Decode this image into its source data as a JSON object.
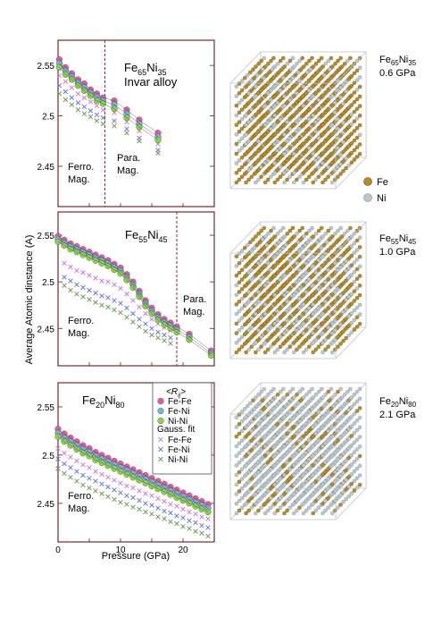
{
  "figure": {
    "ylabel": "Average Atomic dinstance (A)",
    "xlabel": "Pressure (GPa)",
    "legend_species": [
      {
        "label": "Fe",
        "color": "#b58a2a"
      },
      {
        "label": "Ni",
        "color": "#b9c6cc"
      }
    ]
  },
  "chart_data": [
    {
      "type": "scatter",
      "composition": "Fe65Ni35",
      "title_main": "Fe",
      "title_sub1": "65",
      "title_mid": "Ni",
      "title_sub2": "35",
      "annotation": "Invar alloy",
      "region_left": [
        "Ferro.",
        "Mag."
      ],
      "region_right": [
        "Para.",
        "Mag."
      ],
      "transition_pressure": 7.5,
      "xlim": [
        0,
        25
      ],
      "ylim": [
        2.41,
        2.575
      ],
      "yticks": [
        2.45,
        2.5,
        2.55
      ],
      "ytick_labels": [
        "2.45",
        "2.5",
        "2.55"
      ],
      "series": [
        {
          "name": "Fe-Fe",
          "marker": "circle",
          "color": "#ea5aa0",
          "x": [
            0.2,
            1.2,
            2.2,
            3.2,
            4.2,
            5.2,
            6.2,
            7.2,
            9,
            11,
            13,
            16
          ],
          "y": [
            2.556,
            2.548,
            2.542,
            2.536,
            2.532,
            2.526,
            2.522,
            2.518,
            2.515,
            2.506,
            2.496,
            2.483
          ]
        },
        {
          "name": "Fe-Ni",
          "marker": "circle",
          "color": "#6cb4ea",
          "x": [
            0.2,
            1.2,
            2.2,
            3.2,
            4.2,
            5.2,
            6.2,
            7.2,
            9,
            11,
            13,
            16
          ],
          "y": [
            2.552,
            2.545,
            2.539,
            2.533,
            2.528,
            2.523,
            2.519,
            2.515,
            2.511,
            2.502,
            2.492,
            2.479
          ]
        },
        {
          "name": "Ni-Ni",
          "marker": "circle",
          "color": "#8ad444",
          "x": [
            0.2,
            1.2,
            2.2,
            3.2,
            4.2,
            5.2,
            6.2,
            7.2,
            9,
            11,
            13,
            16
          ],
          "y": [
            2.548,
            2.541,
            2.536,
            2.53,
            2.525,
            2.52,
            2.515,
            2.512,
            2.507,
            2.498,
            2.489,
            2.476
          ]
        },
        {
          "name": "Fe-Fe fit",
          "marker": "x",
          "color": "#d27ad6",
          "x": [
            0.2,
            1.2,
            2.2,
            3.2,
            4.2,
            5.2,
            6.2,
            7.2,
            9,
            11,
            13,
            16
          ],
          "y": [
            2.54,
            2.534,
            2.528,
            2.522,
            2.518,
            2.514,
            2.51,
            2.506,
            2.503,
            2.494,
            2.485,
            2.472
          ]
        },
        {
          "name": "Fe-Ni fit",
          "marker": "x",
          "color": "#6a78e6",
          "x": [
            0.2,
            1.2,
            2.2,
            3.2,
            4.2,
            5.2,
            6.2,
            7.2,
            9,
            11,
            13,
            16
          ],
          "y": [
            2.53,
            2.524,
            2.518,
            2.513,
            2.509,
            2.505,
            2.501,
            2.498,
            2.495,
            2.487,
            2.478,
            2.466
          ]
        },
        {
          "name": "Ni-Ni fit",
          "marker": "x",
          "color": "#6e9e58",
          "x": [
            0.2,
            1.2,
            2.2,
            3.2,
            4.2,
            5.2,
            6.2,
            7.2,
            9,
            11,
            13,
            16
          ],
          "y": [
            2.522,
            2.516,
            2.511,
            2.506,
            2.502,
            2.499,
            2.495,
            2.492,
            2.49,
            2.483,
            2.475,
            2.463
          ]
        }
      ]
    },
    {
      "type": "scatter",
      "composition": "Fe55Ni45",
      "title_main": "Fe",
      "title_sub1": "55",
      "title_mid": "Ni",
      "title_sub2": "45",
      "annotation": "",
      "region_left": [
        "Ferro.",
        "Mag."
      ],
      "region_right": [
        "Para.",
        "Mag."
      ],
      "transition_pressure": 19,
      "xlim": [
        0,
        25
      ],
      "ylim": [
        2.41,
        2.575
      ],
      "yticks": [
        2.45,
        2.5,
        2.55
      ],
      "ytick_labels": [
        "2.45",
        "2.5",
        "2.55"
      ],
      "series": [
        {
          "name": "Fe-Fe",
          "marker": "circle",
          "color": "#ea5aa0",
          "x": [
            0,
            1,
            2,
            3,
            4,
            5,
            6,
            7,
            8,
            9,
            10,
            11,
            12,
            13,
            14,
            15,
            16,
            17,
            18,
            19,
            21,
            24.5
          ],
          "y": [
            2.549,
            2.545,
            2.541,
            2.538,
            2.535,
            2.532,
            2.529,
            2.526,
            2.523,
            2.519,
            2.515,
            2.508,
            2.5,
            2.49,
            2.48,
            2.472,
            2.465,
            2.46,
            2.456,
            2.452,
            2.444,
            2.426
          ]
        },
        {
          "name": "Fe-Ni",
          "marker": "circle",
          "color": "#6cb4ea",
          "x": [
            0,
            1,
            2,
            3,
            4,
            5,
            6,
            7,
            8,
            9,
            10,
            11,
            12,
            13,
            14,
            15,
            16,
            17,
            18,
            19,
            21,
            24.5
          ],
          "y": [
            2.546,
            2.542,
            2.538,
            2.535,
            2.532,
            2.529,
            2.526,
            2.523,
            2.52,
            2.516,
            2.512,
            2.505,
            2.497,
            2.487,
            2.477,
            2.469,
            2.462,
            2.457,
            2.453,
            2.449,
            2.441,
            2.423
          ]
        },
        {
          "name": "Ni-Ni",
          "marker": "circle",
          "color": "#8ad444",
          "x": [
            0,
            1,
            2,
            3,
            4,
            5,
            6,
            7,
            8,
            9,
            10,
            11,
            12,
            13,
            14,
            15,
            16,
            17,
            18,
            19,
            21,
            24.5
          ],
          "y": [
            2.543,
            2.539,
            2.535,
            2.532,
            2.529,
            2.526,
            2.523,
            2.52,
            2.517,
            2.513,
            2.509,
            2.502,
            2.494,
            2.484,
            2.474,
            2.466,
            2.459,
            2.454,
            2.45,
            2.446,
            2.438,
            2.421
          ]
        },
        {
          "name": "Fe-Fe fit",
          "marker": "x",
          "color": "#d27ad6",
          "x": [
            1,
            2,
            3,
            4,
            5,
            6,
            7,
            8,
            9,
            10,
            11,
            12,
            13,
            14,
            15,
            16,
            17,
            18
          ],
          "y": [
            2.52,
            2.516,
            2.512,
            2.51,
            2.507,
            2.504,
            2.501,
            2.5,
            2.497,
            2.493,
            2.487,
            2.48,
            2.473,
            2.466,
            2.46,
            2.455,
            2.451,
            2.448
          ]
        },
        {
          "name": "Fe-Ni fit",
          "marker": "x",
          "color": "#6a78e6",
          "x": [
            1,
            2,
            3,
            4,
            5,
            6,
            7,
            8,
            9,
            10,
            11,
            12,
            13,
            14,
            15,
            16,
            17,
            18
          ],
          "y": [
            2.505,
            2.501,
            2.497,
            2.494,
            2.491,
            2.488,
            2.485,
            2.483,
            2.48,
            2.477,
            2.472,
            2.466,
            2.46,
            2.455,
            2.45,
            2.446,
            2.443,
            2.44
          ]
        },
        {
          "name": "Ni-Ni fit",
          "marker": "x",
          "color": "#6e9e58",
          "x": [
            1,
            2,
            3,
            4,
            5,
            6,
            7,
            8,
            9,
            10,
            11,
            12,
            13,
            14,
            15,
            16,
            17,
            18
          ],
          "y": [
            2.496,
            2.491,
            2.487,
            2.484,
            2.481,
            2.478,
            2.475,
            2.473,
            2.47,
            2.467,
            2.462,
            2.457,
            2.452,
            2.447,
            2.443,
            2.44,
            2.437,
            2.434
          ]
        }
      ]
    },
    {
      "type": "scatter",
      "composition": "Fe20Ni80",
      "title_main": "Fe",
      "title_sub1": "20",
      "title_mid": "Ni",
      "title_sub2": "80",
      "annotation": "",
      "region_left": [
        "Ferro.",
        "Mag."
      ],
      "region_right": [],
      "transition_pressure": null,
      "xlim": [
        0,
        25
      ],
      "ylim": [
        2.41,
        2.575
      ],
      "yticks": [
        2.45,
        2.5,
        2.55
      ],
      "ytick_labels": [
        "2.45",
        "2.5",
        "2.55"
      ],
      "xticks": [
        0,
        10,
        20
      ],
      "xtick_labels": [
        "0",
        "10",
        "20"
      ],
      "legend": {
        "header": "<R",
        "header_sub": "ij",
        "header_end": ">",
        "items": [
          "Fe-Fe",
          "Fe-Ni",
          "Ni-Ni"
        ],
        "fit_header": "Gauss. fit",
        "fit_items": [
          "Fe-Fe",
          "Fe-Ni",
          "Ni-Ni"
        ]
      },
      "series": [
        {
          "name": "Fe-Fe",
          "marker": "circle",
          "color": "#ea5aa0",
          "x": [
            0,
            1,
            2,
            3,
            4,
            5,
            6,
            7,
            8,
            9,
            10,
            11,
            12,
            13,
            14,
            15,
            16,
            17,
            18,
            19,
            20,
            21,
            22,
            23,
            24
          ],
          "y": [
            2.527,
            2.522,
            2.518,
            2.514,
            2.51,
            2.507,
            2.503,
            2.5,
            2.497,
            2.494,
            2.491,
            2.488,
            2.485,
            2.482,
            2.479,
            2.476,
            2.473,
            2.47,
            2.467,
            2.464,
            2.461,
            2.458,
            2.455,
            2.452,
            2.449
          ]
        },
        {
          "name": "Fe-Ni",
          "marker": "circle",
          "color": "#6cb4ea",
          "x": [
            0,
            1,
            2,
            3,
            4,
            5,
            6,
            7,
            8,
            9,
            10,
            11,
            12,
            13,
            14,
            15,
            16,
            17,
            18,
            19,
            20,
            21,
            22,
            23,
            24
          ],
          "y": [
            2.523,
            2.518,
            2.514,
            2.51,
            2.506,
            2.503,
            2.499,
            2.496,
            2.493,
            2.49,
            2.487,
            2.484,
            2.481,
            2.478,
            2.475,
            2.472,
            2.469,
            2.466,
            2.463,
            2.46,
            2.457,
            2.454,
            2.451,
            2.448,
            2.445
          ]
        },
        {
          "name": "Ni-Ni",
          "marker": "circle",
          "color": "#8ad444",
          "x": [
            0,
            1,
            2,
            3,
            4,
            5,
            6,
            7,
            8,
            9,
            10,
            11,
            12,
            13,
            14,
            15,
            16,
            17,
            18,
            19,
            20,
            21,
            22,
            23,
            24
          ],
          "y": [
            2.519,
            2.514,
            2.51,
            2.506,
            2.502,
            2.499,
            2.495,
            2.492,
            2.489,
            2.486,
            2.483,
            2.48,
            2.477,
            2.474,
            2.471,
            2.468,
            2.465,
            2.462,
            2.459,
            2.456,
            2.453,
            2.45,
            2.447,
            2.444,
            2.441
          ]
        },
        {
          "name": "Fe-Fe fit",
          "marker": "x",
          "color": "#d27ad6",
          "x": [
            0,
            1,
            2,
            3,
            4,
            5,
            6,
            7,
            8,
            9,
            10,
            11,
            12,
            13,
            14,
            15,
            16,
            17,
            18,
            19,
            20,
            21,
            22,
            23,
            24
          ],
          "y": [
            2.507,
            2.502,
            2.498,
            2.494,
            2.49,
            2.487,
            2.483,
            2.48,
            2.477,
            2.474,
            2.471,
            2.468,
            2.466,
            2.463,
            2.46,
            2.458,
            2.455,
            2.452,
            2.449,
            2.447,
            2.444,
            2.441,
            2.439,
            2.436,
            2.434
          ]
        },
        {
          "name": "Fe-Ni fit",
          "marker": "x",
          "color": "#6a78e6",
          "x": [
            0,
            1,
            2,
            3,
            4,
            5,
            6,
            7,
            8,
            9,
            10,
            11,
            12,
            13,
            14,
            15,
            16,
            17,
            18,
            19,
            20,
            21,
            22,
            23,
            24
          ],
          "y": [
            2.496,
            2.491,
            2.487,
            2.483,
            2.479,
            2.476,
            2.473,
            2.47,
            2.467,
            2.464,
            2.461,
            2.458,
            2.456,
            2.453,
            2.45,
            2.448,
            2.445,
            2.442,
            2.44,
            2.437,
            2.435,
            2.432,
            2.43,
            2.427,
            2.425
          ]
        },
        {
          "name": "Ni-Ni fit",
          "marker": "x",
          "color": "#6e9e58",
          "x": [
            0,
            1,
            2,
            3,
            4,
            5,
            6,
            7,
            8,
            9,
            10,
            11,
            12,
            13,
            14,
            15,
            16,
            17,
            18,
            19,
            20,
            21,
            22,
            23,
            24
          ],
          "y": [
            2.486,
            2.481,
            2.477,
            2.473,
            2.469,
            2.466,
            2.463,
            2.46,
            2.457,
            2.454,
            2.451,
            2.449,
            2.446,
            2.444,
            2.441,
            2.439,
            2.436,
            2.434,
            2.431,
            2.429,
            2.426,
            2.424,
            2.421,
            2.419,
            2.416
          ]
        }
      ]
    }
  ],
  "structures": [
    {
      "main": "Fe",
      "sub1": "65",
      "mid": "Ni",
      "sub2": "35",
      "pressure": "0.6 GPa",
      "fe_fraction": 0.65
    },
    {
      "main": "Fe",
      "sub1": "55",
      "mid": "Ni",
      "sub2": "45",
      "pressure": "1.0 GPa",
      "fe_fraction": 0.55
    },
    {
      "main": "Fe",
      "sub1": "20",
      "mid": "Ni",
      "sub2": "80",
      "pressure": "2.1 GPa",
      "fe_fraction": 0.2
    }
  ]
}
